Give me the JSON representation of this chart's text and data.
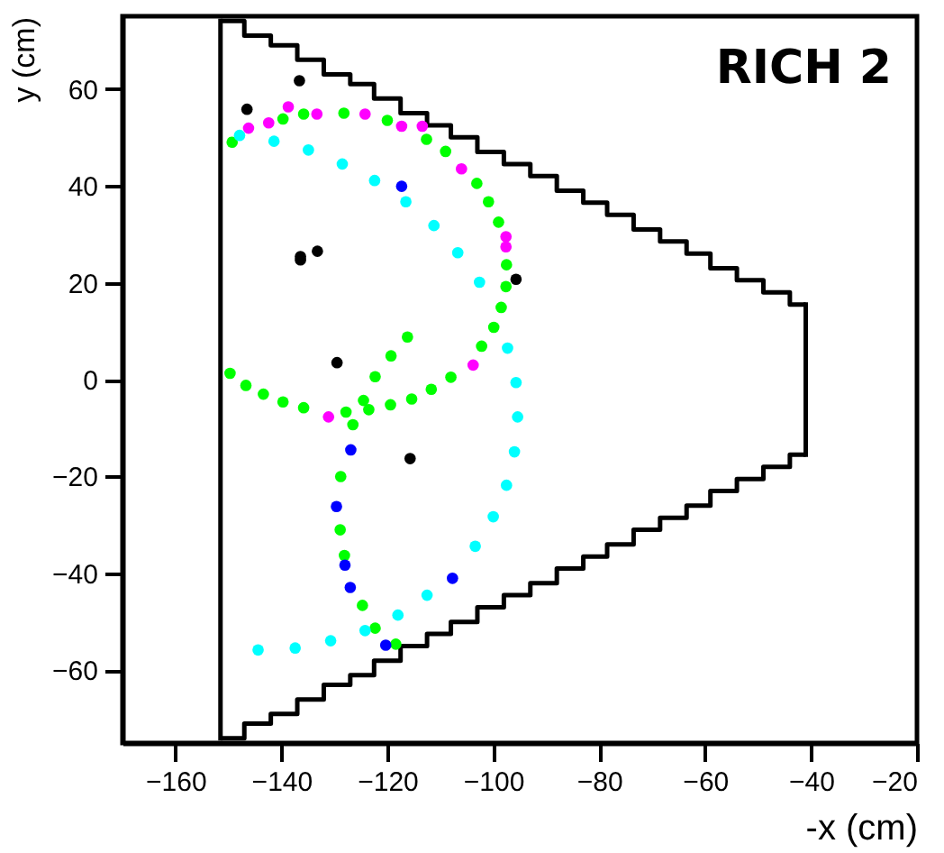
{
  "chart_data": {
    "type": "scatter",
    "xlabel": "-x (cm)",
    "ylabel": "y (cm)",
    "xlim": [
      -170,
      -20
    ],
    "ylim": [
      -75,
      75
    ],
    "xticks": [
      -160,
      -140,
      -120,
      -100,
      -80,
      -60,
      -40,
      -20
    ],
    "yticks": [
      -60,
      -40,
      -20,
      0,
      20,
      40,
      60
    ],
    "grid": false,
    "marker": "circle",
    "annotations": [
      "RICH 2"
    ],
    "series": [
      {
        "type": "step",
        "marker": "none",
        "color": "#000000",
        "x": [
          -151.5,
          -147,
          -142,
          -137,
          -132,
          -127,
          -122.5,
          -117.5,
          -112.5,
          -108,
          -103,
          -98,
          -93,
          -88,
          -83,
          -78.5,
          -73.5,
          -68.5,
          -63.5,
          -59,
          -54,
          -49,
          -44,
          -41
        ],
        "values": [
          74,
          71,
          69,
          66,
          63,
          61,
          58,
          55,
          52.5,
          50,
          47,
          44.5,
          42,
          39,
          36.5,
          34,
          31,
          28.5,
          26,
          23,
          20.5,
          18,
          15.5,
          15.5
        ]
      },
      {
        "type": "step",
        "marker": "none",
        "color": "#000000",
        "x": [
          -151.5,
          -147,
          -142,
          -137,
          -132,
          -127,
          -122.5,
          -117.5,
          -112.5,
          -108,
          -103,
          -98,
          -93,
          -88,
          -83,
          -78.5,
          -73.5,
          -68.5,
          -63.5,
          -59,
          -54,
          -49,
          -44,
          -41
        ],
        "values": [
          -74,
          -71,
          -69,
          -66,
          -63,
          -61,
          -58,
          -55,
          -52.5,
          -50,
          -47,
          -44.5,
          -42,
          -39,
          -36.5,
          -34,
          -31,
          -28.5,
          -26,
          -23,
          -20.5,
          -18,
          -15.5,
          -15.5
        ]
      },
      {
        "type": "line",
        "marker": "none",
        "color": "#000000",
        "x": [
          -151.5,
          -151.5
        ],
        "values": [
          74,
          -74
        ]
      },
      {
        "type": "line",
        "marker": "none",
        "color": "#000000",
        "x": [
          -41,
          -41
        ],
        "values": [
          15.5,
          -15.5
        ]
      },
      {
        "color": "#00ff00",
        "x": [
          -149.3,
          -139.7,
          -135.8,
          -128.2,
          -120,
          -112.6,
          -109,
          -103.1,
          -100.9,
          -99,
          -97.5,
          -97.6,
          -98.5,
          -99.9,
          -102.2,
          -108,
          -111.7,
          -115.4,
          -119.4,
          -124.5,
          -116.2,
          -119.3,
          -122.3,
          -149.7,
          -146.7,
          -143.4,
          -139.7,
          -135.8,
          -127.8,
          -123.5,
          -126.5,
          -128.8,
          -128.9,
          -128.1,
          -124.7,
          -122.3,
          -118.4
        ],
        "values": [
          49,
          53.8,
          54.8,
          55,
          53.5,
          49.6,
          47.1,
          40.5,
          36.7,
          32.5,
          23.7,
          19.2,
          14.9,
          10.8,
          6.9,
          0.5,
          -2,
          -4,
          -5.2,
          -4.3,
          8.8,
          4.9,
          0.6,
          1.3,
          -1.2,
          -3,
          -4.6,
          -5.8,
          -6.7,
          -6.2,
          -9.3,
          -20,
          -31,
          -36.3,
          -46.6,
          -51.3,
          -54.6
        ]
      },
      {
        "color": "#00ffff",
        "x": [
          -147.9,
          -141.4,
          -134.9,
          -128.5,
          -122.4,
          -116.5,
          -111.2,
          -106.7,
          -102.6,
          -97.3,
          -95.7,
          -95.4,
          -96,
          -97.5,
          -100,
          -103.4,
          -112.5,
          -118,
          -124.2,
          -130.7,
          -137.4,
          -144.4
        ],
        "values": [
          50.4,
          49.2,
          47.4,
          44.5,
          41.1,
          36.7,
          31.8,
          26.2,
          20.1,
          6.5,
          -0.6,
          -7.7,
          -14.9,
          -21.8,
          -28.3,
          -34.4,
          -44.5,
          -48.6,
          -51.8,
          -53.9,
          -55.4,
          -55.8
        ]
      },
      {
        "color": "#000000",
        "x": [
          -136.6,
          -146.5,
          -136.4,
          -136.4,
          -133.2,
          -95.7,
          -129.5,
          -115.7
        ],
        "values": [
          61.7,
          55.8,
          25.4,
          24.7,
          26.5,
          20.7,
          3.5,
          -16.3
        ]
      },
      {
        "color": "#ff00ff",
        "x": [
          -146.2,
          -142.4,
          -138.7,
          -133.3,
          -124.2,
          -117.3,
          -113.4,
          -106,
          -97.6,
          -97.6,
          -103.8,
          -131.1
        ],
        "values": [
          51.9,
          53,
          56.3,
          54.8,
          54.8,
          52.3,
          52.3,
          43.5,
          29.5,
          27.4,
          3,
          -7.7
        ]
      },
      {
        "color": "#0000ff",
        "x": [
          -117.3,
          -126.9,
          -129.6,
          -128,
          -127,
          -107.7,
          -120.3
        ],
        "values": [
          39.9,
          -14.5,
          -26.2,
          -38.3,
          -42.9,
          -41,
          -54.8
        ]
      }
    ]
  }
}
